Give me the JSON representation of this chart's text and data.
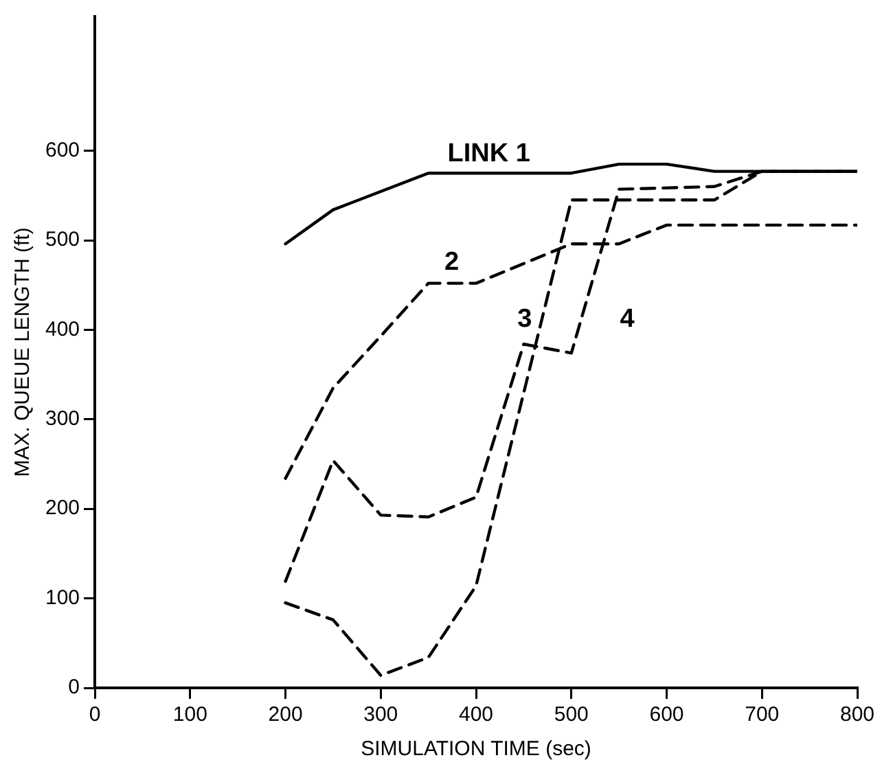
{
  "chart_data": {
    "type": "line",
    "xlabel": "SIMULATION TIME (sec)",
    "ylabel": "MAX. QUEUE LENGTH (ft)",
    "xlim": [
      0,
      800
    ],
    "xticks": [
      0,
      100,
      200,
      300,
      400,
      500,
      600,
      700,
      800
    ],
    "ylim": [
      0,
      750
    ],
    "yticks": [
      0,
      100,
      200,
      300,
      400,
      500,
      600
    ],
    "grid": false,
    "legend": false,
    "marker": "none",
    "series": [
      {
        "name": "LINK 1",
        "color": "#000000",
        "line_style": "solid",
        "x": [
          200,
          250,
          350,
          500,
          550,
          600,
          650,
          800
        ],
        "values": [
          496,
          534,
          575,
          575,
          585,
          585,
          577,
          577
        ]
      },
      {
        "name": "2",
        "color": "#000000",
        "line_style": "dashed",
        "x": [
          200,
          250,
          300,
          350,
          400,
          500,
          550,
          600,
          800
        ],
        "values": [
          234,
          335,
          393,
          452,
          452,
          496,
          496,
          517,
          517
        ]
      },
      {
        "name": "3",
        "color": "#000000",
        "line_style": "dashed",
        "x": [
          200,
          250,
          300,
          350,
          400,
          500,
          650,
          700,
          800
        ],
        "values": [
          95,
          76,
          14,
          34,
          114,
          545,
          545,
          577,
          577
        ]
      },
      {
        "name": "4",
        "color": "#000000",
        "line_style": "dashed",
        "x": [
          200,
          250,
          300,
          350,
          400,
          450,
          500,
          550,
          650,
          700,
          800
        ],
        "values": [
          119,
          254,
          193,
          191,
          213,
          384,
          374,
          557,
          560,
          577,
          577
        ]
      }
    ]
  }
}
